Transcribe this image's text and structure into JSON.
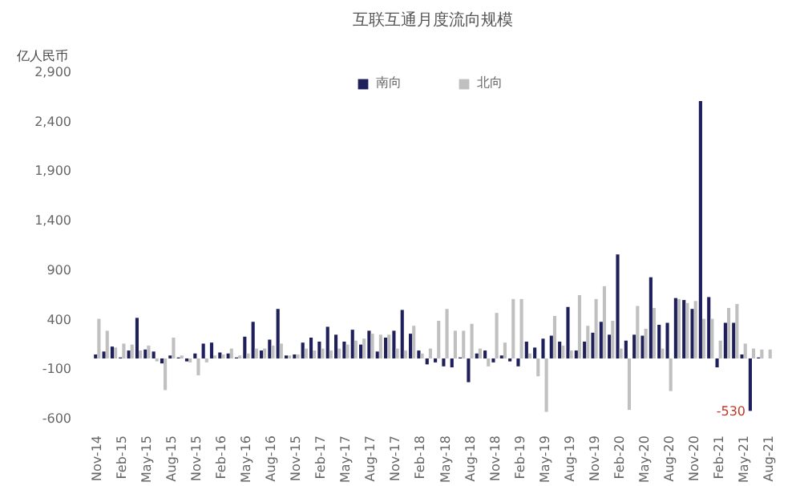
{
  "chart_data": {
    "type": "bar",
    "title": "互联互通月度流向规模",
    "ylabel": "亿人民币",
    "categories": [
      "Nov-14",
      null,
      null,
      "Feb-15",
      null,
      null,
      "May-15",
      null,
      null,
      "Aug-15",
      null,
      null,
      "Nov-15",
      null,
      null,
      "Feb-16",
      null,
      null,
      "May-16",
      null,
      null,
      "Aug-16",
      null,
      null,
      "Nov-15",
      null,
      null,
      "Feb-17",
      null,
      null,
      "May-17",
      null,
      null,
      "Aug-17",
      null,
      null,
      "Nov-17",
      null,
      null,
      "Feb-18",
      null,
      null,
      "May-18",
      null,
      null,
      "Aug-18",
      null,
      null,
      "Nov-18",
      null,
      null,
      "Feb-19",
      null,
      null,
      "May-19",
      null,
      null,
      "Aug-19",
      null,
      null,
      "Nov-19",
      null,
      null,
      "Feb-20",
      null,
      null,
      "May-20",
      null,
      null,
      "Aug-20",
      null,
      null,
      "Nov-20",
      null,
      null,
      "Feb-21",
      null,
      null,
      "May-21",
      null,
      null,
      "Aug-21"
    ],
    "series": [
      {
        "name": "南向",
        "color": "#1f1f5c",
        "values": [
          40,
          70,
          120,
          10,
          80,
          410,
          90,
          70,
          -50,
          30,
          10,
          -30,
          50,
          150,
          160,
          60,
          50,
          10,
          220,
          370,
          80,
          190,
          500,
          30,
          40,
          160,
          210,
          170,
          320,
          240,
          170,
          290,
          140,
          280,
          70,
          210,
          280,
          490,
          250,
          80,
          -60,
          -40,
          -80,
          -90,
          10,
          -240,
          50,
          80,
          -40,
          30,
          -30,
          -80,
          170,
          110,
          200,
          230,
          170,
          520,
          80,
          170,
          260,
          370,
          240,
          1050,
          180,
          240,
          230,
          820,
          340,
          360,
          610,
          590,
          500,
          2600,
          620,
          -90,
          360,
          360,
          40,
          -530,
          10,
          0
        ]
      },
      {
        "name": "北向",
        "color": "#c0c0c0",
        "values": [
          400,
          280,
          110,
          150,
          140,
          80,
          130,
          -30,
          -320,
          210,
          30,
          -40,
          -170,
          -40,
          30,
          40,
          100,
          30,
          50,
          100,
          100,
          130,
          150,
          30,
          40,
          100,
          80,
          100,
          80,
          100,
          140,
          180,
          200,
          250,
          240,
          240,
          100,
          80,
          330,
          50,
          100,
          380,
          500,
          280,
          280,
          350,
          100,
          -80,
          460,
          160,
          600,
          600,
          50,
          -180,
          -540,
          430,
          130,
          80,
          640,
          330,
          600,
          730,
          380,
          100,
          -520,
          530,
          300,
          510,
          100,
          -330,
          600,
          560,
          580,
          400,
          400,
          180,
          510,
          550,
          150,
          100,
          90,
          90
        ]
      }
    ],
    "ylim": [
      -600,
      2900
    ],
    "yticks": [
      {
        "value": -600,
        "label": "-600"
      },
      {
        "value": -100,
        "label": "-100"
      },
      {
        "value": 400,
        "label": "400"
      },
      {
        "value": 900,
        "label": "900"
      },
      {
        "value": 1400,
        "label": "1,400"
      },
      {
        "value": 1900,
        "label": "1,900"
      },
      {
        "value": 2400,
        "label": "2,400"
      },
      {
        "value": 2900,
        "label": "2,900"
      }
    ],
    "annotations": [
      "-530"
    ],
    "legend": "top",
    "grid": false
  }
}
